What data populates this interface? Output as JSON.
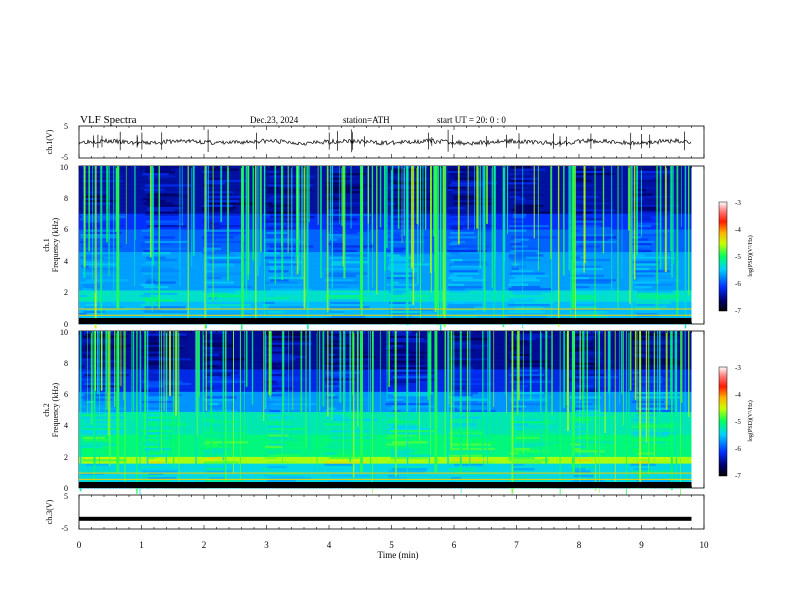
{
  "header": {
    "title": "VLF  Spectra",
    "date": "Dec.23, 2024",
    "station": "station=ATH",
    "start": "start  UT  =    20: 0   : 0"
  },
  "chart_data": [
    {
      "type": "line",
      "name": "ch1-waveform",
      "ylabel": "ch.1(V)",
      "ylim": [
        -5,
        5
      ],
      "yticks": [
        "5",
        "-5"
      ],
      "xlim": [
        0,
        10
      ],
      "trace_level": 0,
      "data_end": 9.8
    },
    {
      "type": "heatmap",
      "name": "ch1-spectrogram",
      "ylabel": "ch.1\nFrequency  (kHz)",
      "ylim": [
        0,
        10
      ],
      "yticks": [
        "0",
        "2",
        "4",
        "6",
        "8",
        "10"
      ],
      "xlim": [
        0,
        10
      ],
      "data_end": 9.8,
      "colorbar": {
        "label": "log(PSD)(V²/Hz)",
        "ticks": [
          "-3",
          "-4",
          "-5",
          "-6",
          "-7"
        ],
        "range": [
          -7,
          -3
        ]
      }
    },
    {
      "type": "heatmap",
      "name": "ch2-spectrogram",
      "ylabel": "ch.2\nFrequency  (kHz)",
      "ylim": [
        0,
        10
      ],
      "yticks": [
        "0",
        "2",
        "4",
        "6",
        "8",
        "10"
      ],
      "xlim": [
        0,
        10
      ],
      "data_end": 9.8,
      "colorbar": {
        "label": "log(PSD)(V²/Hz)",
        "ticks": [
          "-3",
          "-4",
          "-5",
          "-6",
          "-7"
        ],
        "range": [
          -7,
          -3
        ]
      }
    },
    {
      "type": "line",
      "name": "ch3-waveform",
      "ylabel": "ch.3(V)",
      "ylim": [
        -5,
        5
      ],
      "yticks": [
        "5",
        "-5"
      ],
      "xlim": [
        0,
        10
      ],
      "trace_level": -2,
      "data_end": 9.8
    }
  ],
  "x_axis": {
    "label": "Time  (min)",
    "ticks": [
      "0",
      "1",
      "2",
      "3",
      "4",
      "5",
      "6",
      "7",
      "8",
      "9",
      "10"
    ]
  }
}
